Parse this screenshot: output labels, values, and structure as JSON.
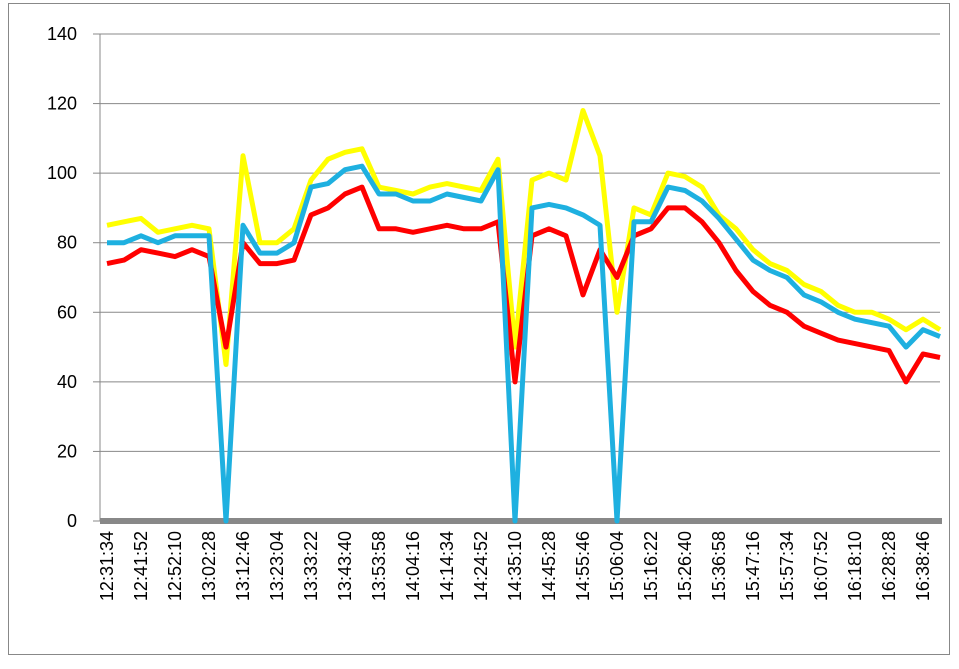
{
  "chart_data": {
    "type": "line",
    "categories": [
      "12:31:34",
      null,
      "12:41:52",
      null,
      "12:52:10",
      null,
      "13:02:28",
      null,
      "13:12:46",
      null,
      "13:23:04",
      null,
      "13:33:22",
      null,
      "13:43:40",
      null,
      "13:53:58",
      null,
      "14:04:16",
      null,
      "14:14:34",
      null,
      "14:24:52",
      null,
      "14:35:10",
      null,
      "14:45:28",
      null,
      "14:55:46",
      null,
      "15:06:04",
      null,
      "15:16:22",
      null,
      "15:26:40",
      null,
      "15:36:58",
      null,
      "15:47:16",
      null,
      "15:57:34",
      null,
      "16:07:52",
      null,
      "16:18:10",
      null,
      "16:28:28",
      null,
      "16:38:46",
      null
    ],
    "series": [
      {
        "color": "#ffff00",
        "values": [
          85,
          86,
          87,
          83,
          84,
          85,
          84,
          45,
          105,
          80,
          80,
          84,
          98,
          104,
          106,
          107,
          96,
          95,
          94,
          96,
          97,
          96,
          95,
          104,
          50,
          98,
          100,
          98,
          118,
          105,
          60,
          90,
          88,
          100,
          99,
          96,
          88,
          84,
          78,
          74,
          72,
          68,
          66,
          62,
          60,
          60,
          58,
          55,
          58,
          55
        ]
      },
      {
        "color": "#ff0000",
        "values": [
          74,
          75,
          78,
          77,
          76,
          78,
          76,
          50,
          80,
          74,
          74,
          75,
          88,
          90,
          94,
          96,
          84,
          84,
          83,
          84,
          85,
          84,
          84,
          86,
          40,
          82,
          84,
          82,
          65,
          78,
          70,
          82,
          84,
          90,
          90,
          86,
          80,
          72,
          66,
          62,
          60,
          56,
          54,
          52,
          51,
          50,
          49,
          40,
          48,
          47
        ]
      },
      {
        "color": "#1eb0e0",
        "values": [
          80,
          80,
          82,
          80,
          82,
          82,
          82,
          0,
          85,
          77,
          77,
          80,
          96,
          97,
          101,
          102,
          94,
          94,
          92,
          92,
          94,
          93,
          92,
          101,
          0,
          90,
          91,
          90,
          88,
          85,
          0,
          86,
          86,
          96,
          95,
          92,
          87,
          81,
          75,
          72,
          70,
          65,
          63,
          60,
          58,
          57,
          56,
          50,
          55,
          53
        ]
      }
    ],
    "ylim": [
      0,
      140
    ],
    "yticks": [
      0,
      20,
      40,
      60,
      80,
      100,
      120,
      140
    ],
    "grid": true
  }
}
